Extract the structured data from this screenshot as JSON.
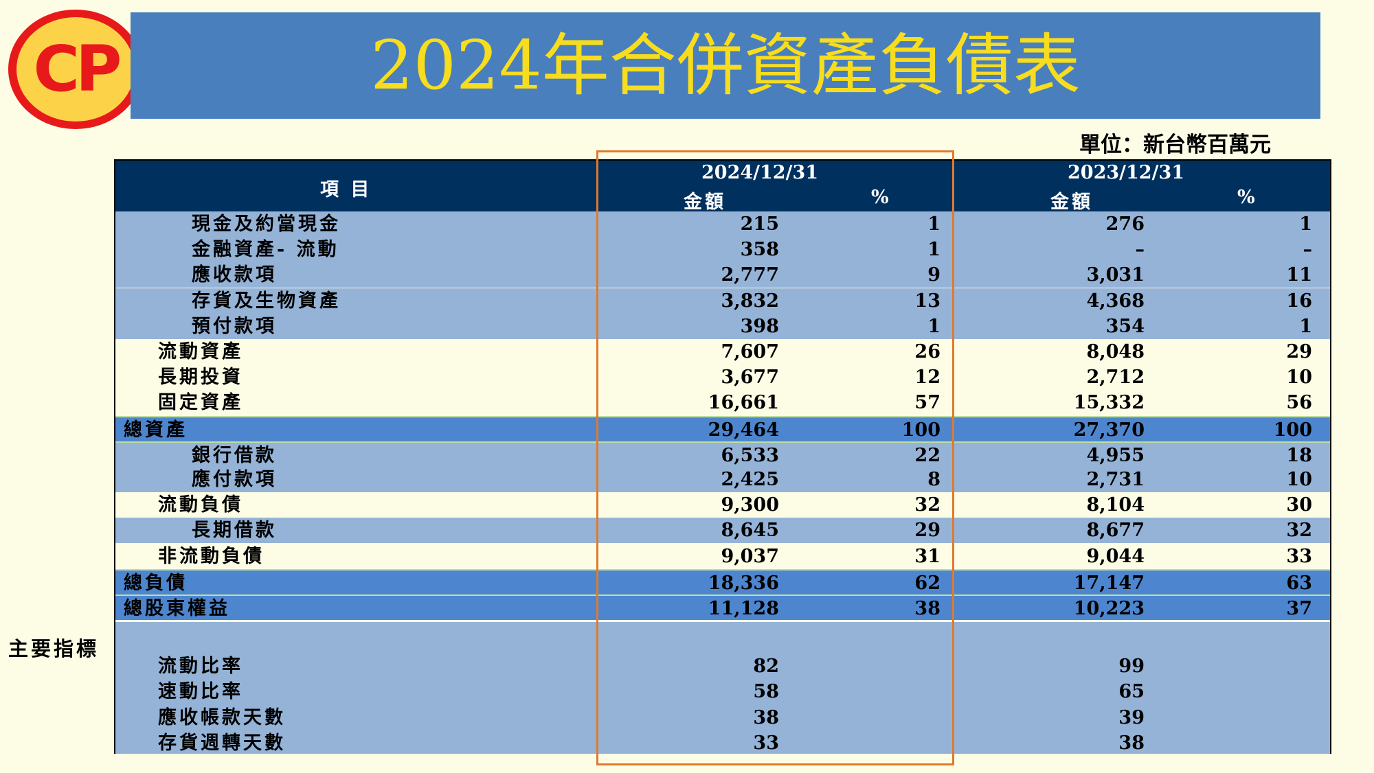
{
  "logo": {
    "text": "CP"
  },
  "title": "2024年合併資產負債表",
  "unit": "單位：新台幣百萬元",
  "header": {
    "item": "項 目",
    "date_2024": "2024/12/31",
    "date_2023": "2023/12/31",
    "amount": "金額",
    "percent": "%"
  },
  "rows": [
    {
      "label": "現金及約當現金",
      "a24": "215",
      "p24": "1",
      "a23": "276",
      "p23": "1"
    },
    {
      "label": "金融資產- 流動",
      "a24": "358",
      "p24": "1",
      "a23": "–",
      "p23": "–"
    },
    {
      "label": "應收款項",
      "a24": "2,777",
      "p24": "9",
      "a23": "3,031",
      "p23": "11"
    },
    {
      "label": "存貨及生物資產",
      "a24": "3,832",
      "p24": "13",
      "a23": "4,368",
      "p23": "16"
    },
    {
      "label": "預付款項",
      "a24": "398",
      "p24": "1",
      "a23": "354",
      "p23": "1"
    },
    {
      "label": "流動資產",
      "a24": "7,607",
      "p24": "26",
      "a23": "8,048",
      "p23": "29"
    },
    {
      "label": "長期投資",
      "a24": "3,677",
      "p24": "12",
      "a23": "2,712",
      "p23": "10"
    },
    {
      "label": "固定資產",
      "a24": "16,661",
      "p24": "57",
      "a23": "15,332",
      "p23": "56"
    },
    {
      "label": "總資產",
      "a24": "29,464",
      "p24": "100",
      "a23": "27,370",
      "p23": "100"
    },
    {
      "label": "銀行借款",
      "a24": "6,533",
      "p24": "22",
      "a23": "4,955",
      "p23": "18"
    },
    {
      "label": "應付款項",
      "a24": "2,425",
      "p24": "8",
      "a23": "2,731",
      "p23": "10"
    },
    {
      "label": "流動負債",
      "a24": "9,300",
      "p24": "32",
      "a23": "8,104",
      "p23": "30"
    },
    {
      "label": "長期借款",
      "a24": "8,645",
      "p24": "29",
      "a23": "8,677",
      "p23": "32"
    },
    {
      "label": "非流動負債",
      "a24": "9,037",
      "p24": "31",
      "a23": "9,044",
      "p23": "33"
    },
    {
      "label": "總負債",
      "a24": "18,336",
      "p24": "62",
      "a23": "17,147",
      "p23": "63"
    },
    {
      "label": "總股東權益",
      "a24": "11,128",
      "p24": "38",
      "a23": "10,223",
      "p23": "37"
    }
  ],
  "indicators": {
    "title": "主要指標",
    "items": [
      {
        "label": "流動比率",
        "v24": "82",
        "v23": "99"
      },
      {
        "label": "速動比率",
        "v24": "58",
        "v23": "65"
      },
      {
        "label": "應收帳款天數",
        "v24": "38",
        "v23": "39"
      },
      {
        "label": "存貨週轉天數",
        "v24": "33",
        "v23": "38"
      }
    ]
  }
}
